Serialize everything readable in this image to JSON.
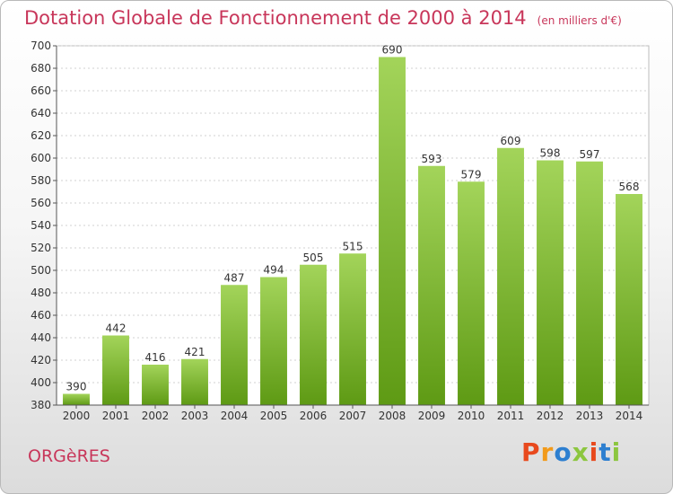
{
  "header": {
    "title": "Dotation Globale de Fonctionnement de 2000 à 2014",
    "subtitle": "(en milliers d'€)"
  },
  "footer": {
    "place": "ORGèRES",
    "logo_text": "Proxiti",
    "logo_colors": [
      "#e8491d",
      "#f29a1a",
      "#2d7fd0",
      "#8cc63f",
      "#e8491d",
      "#2d7fd0",
      "#8cc63f"
    ]
  },
  "colors": {
    "bar_top": "#a3d45a",
    "bar_bottom": "#5e9a14",
    "title": "#c8365a",
    "grid": "#d0d0d0",
    "axis": "#555555"
  },
  "chart_data": {
    "type": "bar",
    "categories": [
      "2000",
      "2001",
      "2002",
      "2003",
      "2004",
      "2005",
      "2006",
      "2007",
      "2008",
      "2009",
      "2010",
      "2011",
      "2012",
      "2013",
      "2014"
    ],
    "values": [
      390,
      442,
      416,
      421,
      487,
      494,
      505,
      515,
      690,
      593,
      579,
      609,
      598,
      597,
      568
    ],
    "ylim": [
      380,
      700
    ],
    "yticks": [
      380,
      400,
      420,
      440,
      460,
      480,
      500,
      520,
      540,
      560,
      580,
      600,
      620,
      640,
      660,
      680,
      700
    ],
    "grid": true,
    "legend": "none"
  }
}
